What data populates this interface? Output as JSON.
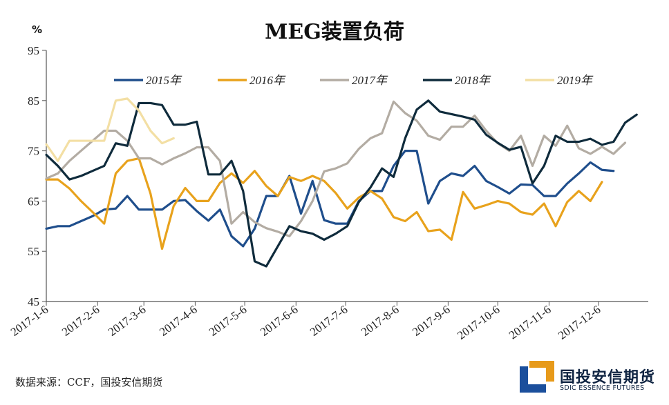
{
  "chart_data": {
    "type": "line",
    "title": "MEG装置负荷",
    "ylabel": "%",
    "ylim": [
      45,
      95
    ],
    "yticks": [
      45,
      55,
      65,
      75,
      85,
      95
    ],
    "xlim": [
      0,
      52
    ],
    "xticks": [
      {
        "label": "2017-1-6",
        "x": 0
      },
      {
        "label": "2017-2-6",
        "x": 4.43
      },
      {
        "label": "2017-3-6",
        "x": 8.43
      },
      {
        "label": "2017-4-6",
        "x": 12.86
      },
      {
        "label": "2017-5-6",
        "x": 17.14
      },
      {
        "label": "2017-6-6",
        "x": 21.57
      },
      {
        "label": "2017-7-6",
        "x": 25.86
      },
      {
        "label": "2017-8-6",
        "x": 30.29
      },
      {
        "label": "2017-9-6",
        "x": 34.71
      },
      {
        "label": "2017-10-6",
        "x": 39.0
      },
      {
        "label": "2017-11-6",
        "x": 43.43
      },
      {
        "label": "2017-12-6",
        "x": 47.71
      }
    ],
    "grid": false,
    "legend_position": "top",
    "series": [
      {
        "name": "2015年",
        "color": "#1f4e8c",
        "values": [
          59.5,
          60,
          60,
          61,
          62,
          63.3,
          63.5,
          66,
          63.3,
          63.3,
          63.3,
          65,
          65.2,
          63,
          61.1,
          63.3,
          58,
          56,
          59.5,
          66,
          66,
          70,
          62.5,
          69,
          61.2,
          60.5,
          60.5,
          65,
          67,
          67,
          72,
          75,
          75,
          64.5,
          69,
          70.5,
          70,
          72,
          69,
          67.8,
          66.5,
          68.3,
          68.2,
          66,
          66,
          68.5,
          70.5,
          72.7,
          71.2,
          71
        ]
      },
      {
        "name": "2016年",
        "color": "#e8a21c",
        "values": [
          69.3,
          69.3,
          67.5,
          65,
          62.8,
          60.5,
          70.5,
          73,
          73.5,
          66.5,
          55.5,
          64,
          67.6,
          65,
          65,
          68.6,
          70.5,
          68.6,
          71,
          68,
          66,
          69.8,
          69,
          70,
          69,
          66.6,
          63.5,
          65.7,
          67,
          65.5,
          61.8,
          61,
          62.8,
          59,
          59.3,
          57.3,
          66.8,
          63.5,
          64.2,
          65,
          64.5,
          62.8,
          62.3,
          64.5,
          60,
          64.8,
          67,
          65,
          68.8
        ]
      },
      {
        "name": "2017年",
        "color": "#b3aca3",
        "values": [
          69.5,
          70.5,
          73,
          75,
          77,
          79,
          79,
          77,
          73.5,
          73.5,
          72.3,
          73.5,
          74.5,
          75.7,
          75.7,
          73,
          60.5,
          62.8,
          60.8,
          59.6,
          58.9,
          58,
          61,
          65,
          70.9,
          71.5,
          72.5,
          75.4,
          77.5,
          78.5,
          84.8,
          82.5,
          81,
          78,
          77.2,
          79.8,
          79.8,
          82,
          79,
          76.5,
          75,
          78,
          72,
          78,
          76,
          80,
          75.5,
          74.4,
          75.8,
          74.4,
          76.6
        ]
      },
      {
        "name": "2018年",
        "color": "#0f2b3c",
        "values": [
          74.2,
          72,
          69.3,
          70,
          71,
          72,
          76.5,
          76,
          84.5,
          84.5,
          84.1,
          80.2,
          80.2,
          80.8,
          70.3,
          70.3,
          73,
          67,
          53,
          52,
          56,
          60,
          59,
          58.5,
          57.3,
          58.5,
          60,
          64.8,
          67.7,
          71.5,
          69.8,
          77.5,
          83.2,
          85,
          82.8,
          82.3,
          81.8,
          81.2,
          78.2,
          76.6,
          75.2,
          75.8,
          68.5,
          72,
          78,
          76.8,
          76.8,
          77.4,
          76.2,
          76.8,
          80.6,
          82.2
        ]
      },
      {
        "name": "2019年",
        "color": "#f3dfa4",
        "values": [
          76.3,
          73,
          77,
          77,
          77,
          77,
          85,
          85.4,
          83,
          79,
          76.5,
          77.5
        ]
      }
    ]
  }
}
